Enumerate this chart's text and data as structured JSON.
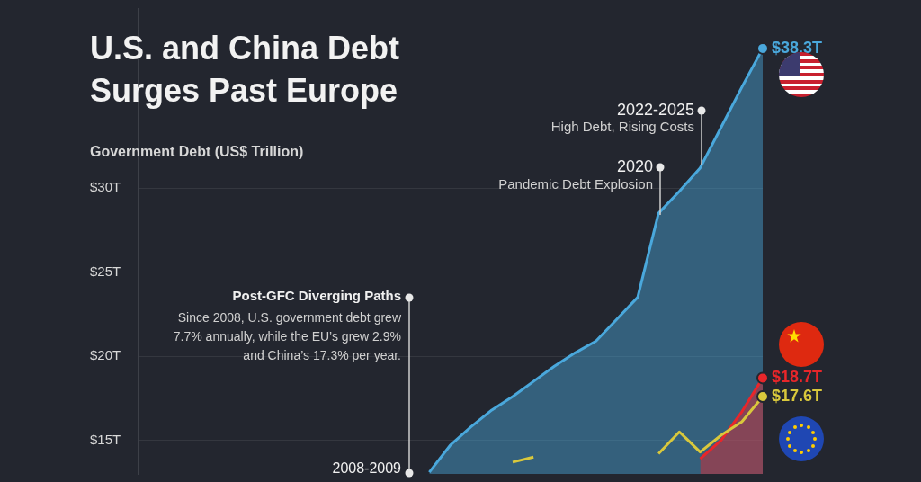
{
  "chart_data": {
    "type": "line",
    "title": "U.S. and China Debt Surges Past Europe",
    "ylabel": "Government Debt (US$ Trillion)",
    "categories": [
      null,
      null,
      null,
      null,
      null,
      null,
      null,
      null,
      null,
      null,
      null,
      null,
      null,
      null,
      null,
      null,
      null,
      null,
      null,
      null,
      null,
      null,
      null,
      null,
      null,
      null,
      null,
      null,
      null,
      null,
      null
    ],
    "series": [
      {
        "type": "area",
        "color": "#4aa8dc",
        "values": [
          null,
          null,
          null,
          null,
          null,
          null,
          null,
          null,
          null,
          null,
          null,
          null,
          null,
          null,
          13.1,
          14.7,
          15.8,
          16.8,
          17.6,
          18.5,
          19.4,
          20.2,
          20.9,
          22.2,
          23.5,
          28.5,
          29.8,
          31.2,
          33.6,
          36.0,
          38.3
        ],
        "value_labels": [
          null,
          null,
          null,
          null,
          null,
          null,
          null,
          null,
          null,
          null,
          null,
          null,
          null,
          null,
          null,
          null,
          null,
          null,
          null,
          null,
          null,
          null,
          null,
          null,
          null,
          null,
          null,
          null,
          null,
          null,
          "$38.3T"
        ]
      },
      {
        "type": "area",
        "color": "#e8262a",
        "values": [
          null,
          null,
          null,
          null,
          null,
          null,
          null,
          null,
          null,
          null,
          null,
          null,
          null,
          null,
          null,
          null,
          null,
          null,
          null,
          null,
          null,
          null,
          null,
          null,
          null,
          null,
          null,
          13.9,
          15.0,
          16.7,
          18.7
        ],
        "value_labels": [
          null,
          null,
          null,
          null,
          null,
          null,
          null,
          null,
          null,
          null,
          null,
          null,
          null,
          null,
          null,
          null,
          null,
          null,
          null,
          null,
          null,
          null,
          null,
          null,
          null,
          null,
          null,
          null,
          null,
          null,
          "$18.7T"
        ]
      },
      {
        "type": "line",
        "color": "#d9c83c",
        "values": [
          null,
          null,
          null,
          null,
          null,
          null,
          null,
          null,
          null,
          null,
          null,
          null,
          null,
          null,
          null,
          null,
          null,
          null,
          13.7,
          14.0,
          null,
          null,
          null,
          null,
          null,
          14.2,
          15.5,
          14.3,
          15.3,
          16.1,
          17.6
        ],
        "value_labels": [
          null,
          null,
          null,
          null,
          null,
          null,
          null,
          null,
          null,
          null,
          null,
          null,
          null,
          null,
          null,
          null,
          null,
          null,
          null,
          null,
          null,
          null,
          null,
          null,
          null,
          null,
          null,
          null,
          null,
          null,
          "$17.6T"
        ]
      }
    ],
    "ylim": [
      13,
      40.7
    ],
    "yticks": [
      {
        "value": 15,
        "label": "$15T"
      },
      {
        "value": 20,
        "label": "$20T"
      },
      {
        "value": 25,
        "label": "$25T"
      },
      {
        "value": 30,
        "label": "$30T"
      }
    ],
    "tick_labels": "y",
    "grid": "y",
    "legend": false,
    "annotations": [
      "2022-2025",
      "High Debt, Rising Costs",
      "2020",
      "Pandemic Debt Explosion",
      "Post-GFC Diverging Paths",
      "Since 2008, U.S. government debt grew 7.7% annually, while the EU’s grew 2.9% and China’s 17.3% per year.",
      "2008-2009"
    ]
  }
}
